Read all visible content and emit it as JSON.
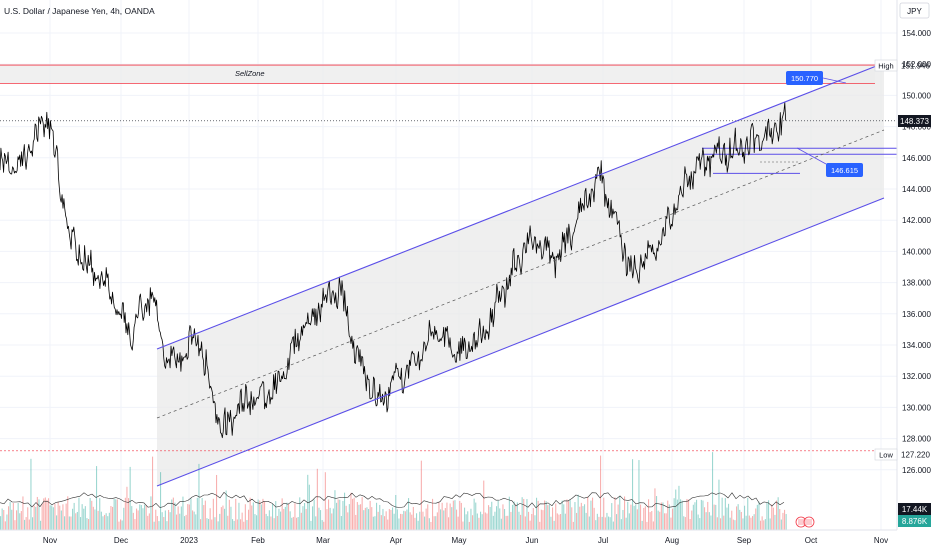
{
  "header": {
    "title": "U.S. Dollar / Japanese Yen, 4h, OANDA"
  },
  "currency_button": {
    "label": "JPY"
  },
  "price_axis": {
    "ticks": [
      "154.000",
      "152.000",
      "150.000",
      "148.000",
      "146.000",
      "144.000",
      "142.000",
      "140.000",
      "138.000",
      "136.000",
      "134.000",
      "132.000",
      "130.000",
      "128.000",
      "126.000"
    ]
  },
  "time_axis": {
    "ticks": [
      "Nov",
      "Dec",
      "2023",
      "Feb",
      "Mar",
      "Apr",
      "May",
      "Jun",
      "Jul",
      "Aug",
      "Sep",
      "Oct",
      "Nov"
    ]
  },
  "labels": {
    "high_text": "High",
    "high_value": "151.946",
    "low_text": "Low",
    "low_value": "127.220",
    "current_value": "148.373",
    "sell_zone": "SellZone",
    "callout_upper": "150.770",
    "callout_lower": "146.615",
    "volume_value": "17.44K",
    "volume_ma_value": "8.876K"
  },
  "colors": {
    "channel": "#5b4fe8",
    "zone_border": "#f23645",
    "callout_bg": "#2962ff",
    "price_line": "#000000",
    "vol_up": "#26a69a",
    "vol_down": "#ef5350",
    "axis_text": "#131722",
    "current_label_bg": "#131722",
    "volume_label_bg": "#131722",
    "volume_ma_label_bg": "#26a69a"
  },
  "chart_data": {
    "type": "line",
    "instrument": "USD/JPY",
    "timeframe": "4h",
    "x": [
      "2022-10-20",
      "2022-10-31",
      "2022-11-10",
      "2022-11-21",
      "2022-11-28",
      "2022-12-05",
      "2022-12-15",
      "2022-12-20",
      "2022-12-28",
      "2023-01-05",
      "2023-01-16",
      "2023-01-27",
      "2023-02-08",
      "2023-02-22",
      "2023-03-08",
      "2023-03-15",
      "2023-03-24",
      "2023-04-05",
      "2023-04-20",
      "2023-05-01",
      "2023-05-11",
      "2023-05-30",
      "2023-06-12",
      "2023-06-30",
      "2023-07-14",
      "2023-07-28",
      "2023-08-11",
      "2023-08-18",
      "2023-08-28",
      "2023-09-08",
      "2023-09-20"
    ],
    "y": [
      145.5,
      148.8,
      140.5,
      138.5,
      137.0,
      134.5,
      137.5,
      133.5,
      133.2,
      134.5,
      128.5,
      130.5,
      131.0,
      135.5,
      137.8,
      133.5,
      130.5,
      132.0,
      134.8,
      133.5,
      134.5,
      140.8,
      139.5,
      145.0,
      138.5,
      141.0,
      145.5,
      146.0,
      146.6,
      147.2,
      148.37
    ],
    "ylim": [
      124.8,
      155.2
    ],
    "y_scale": "linear",
    "grid": true,
    "levels": {
      "high": 151.946,
      "low": 127.22,
      "last": 148.373
    },
    "sell_zone": {
      "from": 150.77,
      "to": 151.946
    },
    "support_box": {
      "from": 145.0,
      "to": 146.615
    },
    "volume": {
      "last": "17.44K",
      "ma": "8.876K"
    }
  }
}
